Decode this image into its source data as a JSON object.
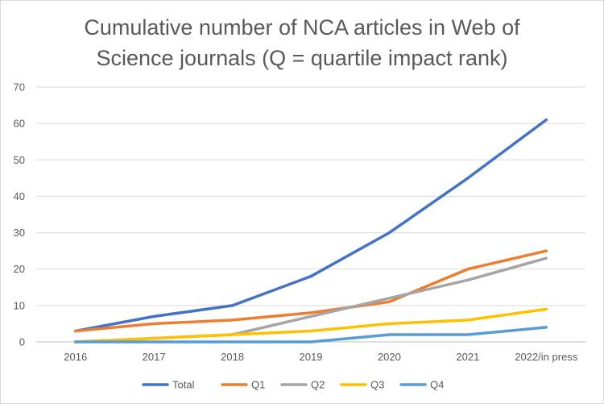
{
  "chart_data": {
    "type": "line",
    "title_line1": "Cumulative number of NCA articles in Web of",
    "title_line2": "Science journals (Q = quartile impact rank)",
    "categories": [
      "2016",
      "2017",
      "2018",
      "2019",
      "2020",
      "2021",
      "2022/in press"
    ],
    "ylim": [
      0,
      70
    ],
    "yticks": [
      0,
      10,
      20,
      30,
      40,
      50,
      60,
      70
    ],
    "grid": true,
    "legend_position": "bottom",
    "series": [
      {
        "name": "Total",
        "color": "#4472c4",
        "values": [
          3,
          7,
          10,
          18,
          30,
          45,
          61
        ]
      },
      {
        "name": "Q1",
        "color": "#ed7d31",
        "values": [
          3,
          5,
          6,
          8,
          11,
          20,
          25
        ]
      },
      {
        "name": "Q2",
        "color": "#a5a5a5",
        "values": [
          0,
          1,
          2,
          7,
          12,
          17,
          23
        ]
      },
      {
        "name": "Q3",
        "color": "#ffc000",
        "values": [
          0,
          1,
          2,
          3,
          5,
          6,
          9
        ]
      },
      {
        "name": "Q4",
        "color": "#5b9bd5",
        "values": [
          0,
          0,
          0,
          0,
          2,
          2,
          4
        ]
      }
    ]
  }
}
